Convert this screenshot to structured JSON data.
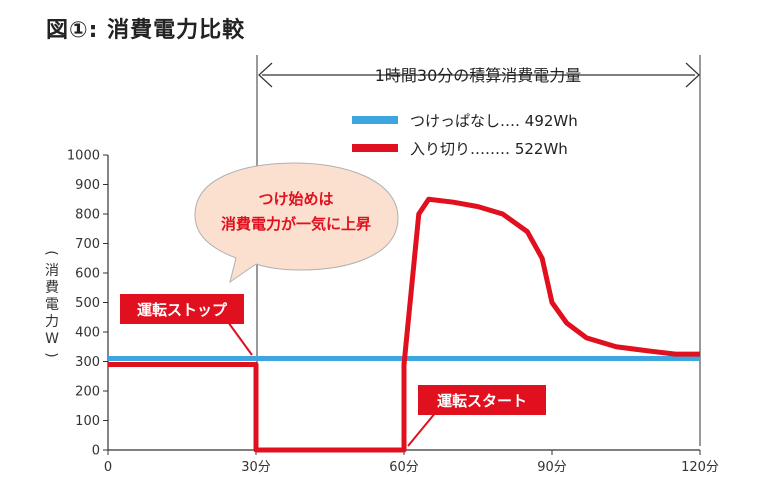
{
  "figure": {
    "title": "図①: 消費電力比較"
  },
  "chart_data": {
    "type": "line",
    "x_ticks": [
      "0",
      "30分",
      "60分",
      "90分",
      "120分"
    ],
    "x_range": [
      0,
      120
    ],
    "y_ticks": [
      0,
      100,
      200,
      300,
      400,
      500,
      600,
      700,
      800,
      900,
      1000
    ],
    "ylim": [
      0,
      1000
    ],
    "ylabel": "(消費電力W)",
    "bracket_label": "1時間30分の積算消費電力量",
    "series": [
      {
        "name": "つけっぱなし",
        "legend_label": "つけっぱなし‥‥ 492Wh",
        "color": "#3da6e0",
        "x": [
          0,
          120
        ],
        "y": [
          310,
          310
        ]
      },
      {
        "name": "入り切り",
        "legend_label": "入り切り‥‥‥‥ 522Wh",
        "color": "#e0101e",
        "x": [
          0,
          30,
          30,
          60,
          60,
          63,
          65,
          70,
          75,
          80,
          85,
          88,
          90,
          93,
          97,
          103,
          110,
          115,
          120
        ],
        "y": [
          290,
          290,
          0,
          0,
          290,
          800,
          850,
          840,
          825,
          800,
          740,
          650,
          500,
          430,
          380,
          350,
          335,
          325,
          325
        ]
      }
    ],
    "annotations": [
      {
        "id": "start-surge",
        "text_lines": [
          "つけ始めは",
          "消費電力が一気に上昇"
        ]
      },
      {
        "id": "stop",
        "text": "運転ストップ"
      },
      {
        "id": "start",
        "text": "運転スタート"
      }
    ]
  }
}
